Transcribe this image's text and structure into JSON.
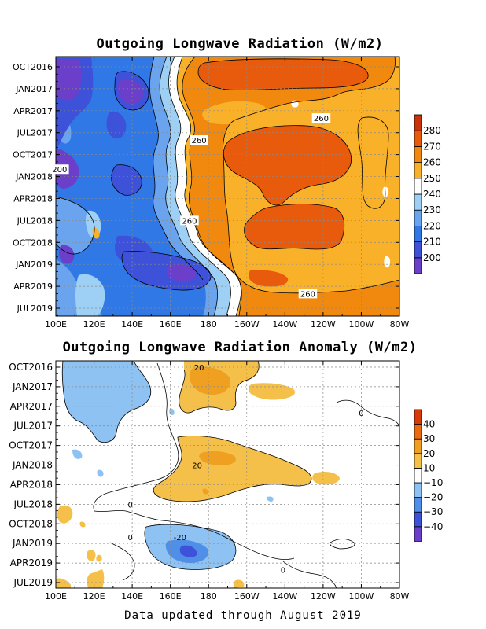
{
  "chart_data": [
    {
      "type": "heatmap",
      "title": "Outgoing Longwave Radiation (W/m2)",
      "x_tick_labels": [
        "100E",
        "120E",
        "140E",
        "160E",
        "180",
        "160W",
        "140W",
        "120W",
        "100W",
        "80W"
      ],
      "y_tick_labels": [
        "OCT2016",
        "JAN2017",
        "APR2017",
        "JUL2017",
        "OCT2017",
        "JAN2018",
        "APR2018",
        "JUL2018",
        "OCT2018",
        "JAN2019",
        "APR2019",
        "JUL2019"
      ],
      "colorbar": {
        "levels": [
          200,
          210,
          220,
          230,
          240,
          250,
          260,
          270,
          280
        ],
        "colors": [
          "#6b3fc9",
          "#3d52d9",
          "#2f78e6",
          "#6aa3ee",
          "#9dd0f4",
          "#ffffff",
          "#f9b12a",
          "#f0890e",
          "#e85a0c",
          "#c8330a"
        ]
      },
      "contour_labels": [
        {
          "text": "260",
          "lon": 175,
          "date": "AUG2017"
        },
        {
          "text": "260",
          "lon": -121,
          "date": "MAY2017"
        },
        {
          "text": "200",
          "lon": 102,
          "date": "DEC2017"
        },
        {
          "text": "260",
          "lon": 170,
          "date": "JUL2018"
        },
        {
          "text": "260",
          "lon": -128,
          "date": "MAY2019"
        }
      ],
      "grid": true
    },
    {
      "type": "heatmap",
      "title": "Outgoing Longwave Radiation Anomaly (W/m2)",
      "x_tick_labels": [
        "100E",
        "120E",
        "140E",
        "160E",
        "180",
        "160W",
        "140W",
        "120W",
        "100W",
        "80W"
      ],
      "y_tick_labels": [
        "OCT2016",
        "JAN2017",
        "APR2017",
        "JUL2017",
        "OCT2017",
        "JAN2018",
        "APR2018",
        "JUL2018",
        "OCT2018",
        "JAN2019",
        "APR2019",
        "JUL2019"
      ],
      "colorbar": {
        "levels": [
          -40,
          -30,
          -20,
          -10,
          10,
          20,
          30,
          40
        ],
        "colors": [
          "#6b3fc9",
          "#3d52d9",
          "#4f8fe8",
          "#8ec2f2",
          "#ffffff",
          "#f5c04a",
          "#f0a020",
          "#ec6a10",
          "#d93a0a"
        ]
      },
      "contour_labels": [
        {
          "text": "20",
          "lon": 175,
          "date": "OCT2016"
        },
        {
          "text": "0",
          "lon": -100,
          "date": "MAY2017"
        },
        {
          "text": "20",
          "lon": 174,
          "date": "JAN2018"
        },
        {
          "text": "0",
          "lon": 139,
          "date": "JUL2018"
        },
        {
          "text": "0",
          "lon": 139,
          "date": "DEC2018"
        },
        {
          "text": "-20",
          "lon": 165,
          "date": "DEC2018"
        },
        {
          "text": "0",
          "lon": -141,
          "date": "MAY2019"
        }
      ],
      "grid": true
    }
  ],
  "footer": "Data updated through August 2019"
}
